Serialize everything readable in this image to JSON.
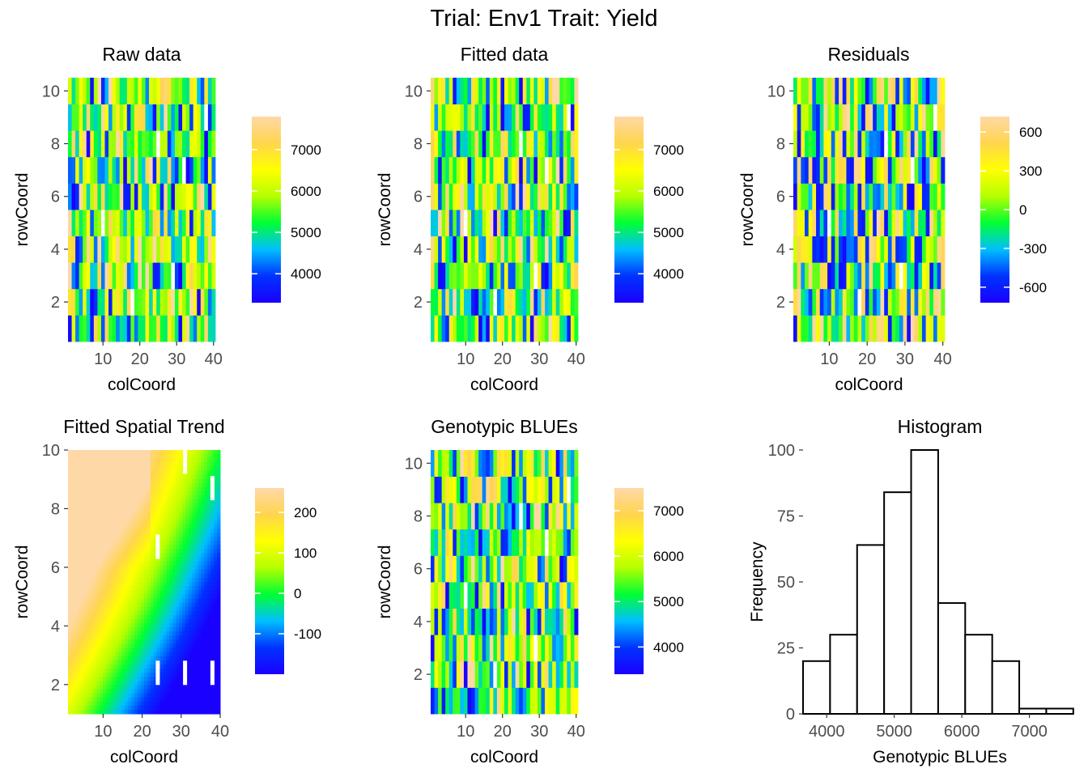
{
  "figure": {
    "title": "Trial: Env1 Trait: Yield"
  },
  "colors": {
    "scale_stops": [
      "#1a00ff",
      "#0033ff",
      "#00bfff",
      "#00ff33",
      "#b5ff00",
      "#ffff00",
      "#ffd54d",
      "#ffd8a8"
    ],
    "missing": "#ffffff",
    "axis_text": "#4d4d4d",
    "histogram_bar": "#ffffff",
    "histogram_edge": "#000000"
  },
  "chart_data": [
    {
      "type": "heatmap",
      "title": "Raw data",
      "xlabel": "colCoord",
      "ylabel": "rowCoord",
      "x_ticks": [
        10,
        20,
        30,
        40
      ],
      "y_ticks": [
        2,
        4,
        6,
        8,
        10
      ],
      "xlim": [
        0.5,
        40.5
      ],
      "ylim": [
        0.5,
        10.5
      ],
      "n_cols": 40,
      "n_rows": 10,
      "value_range": [
        3300,
        7800
      ],
      "legend_ticks": [
        4000,
        5000,
        6000,
        7000
      ],
      "seed": 11,
      "missing_cells": [
        [
          38,
          9
        ],
        [
          29,
          3
        ],
        [
          25,
          8
        ],
        [
          18,
          2
        ],
        [
          32,
          7
        ],
        [
          10,
          5
        ]
      ]
    },
    {
      "type": "heatmap",
      "title": "Fitted data",
      "xlabel": "colCoord",
      "ylabel": "rowCoord",
      "x_ticks": [
        10,
        20,
        30,
        40
      ],
      "y_ticks": [
        2,
        4,
        6,
        8,
        10
      ],
      "xlim": [
        0.5,
        40.5
      ],
      "ylim": [
        0.5,
        10.5
      ],
      "n_cols": 40,
      "n_rows": 10,
      "value_range": [
        3300,
        7800
      ],
      "legend_ticks": [
        4000,
        5000,
        6000,
        7000
      ],
      "seed": 23,
      "missing_cells": [
        [
          38,
          9
        ],
        [
          29,
          3
        ],
        [
          25,
          8
        ],
        [
          18,
          2
        ],
        [
          32,
          7
        ],
        [
          10,
          5
        ]
      ]
    },
    {
      "type": "heatmap",
      "title": "Residuals",
      "xlabel": "colCoord",
      "ylabel": "rowCoord",
      "x_ticks": [
        10,
        20,
        30,
        40
      ],
      "y_ticks": [
        2,
        4,
        6,
        8,
        10
      ],
      "xlim": [
        0.5,
        40.5
      ],
      "ylim": [
        0.5,
        10.5
      ],
      "n_cols": 40,
      "n_rows": 10,
      "value_range": [
        -720,
        720
      ],
      "legend_ticks": [
        -600,
        -300,
        0,
        300,
        600
      ],
      "seed": 37,
      "missing_cells": [
        [
          38,
          9
        ],
        [
          29,
          3
        ],
        [
          25,
          8
        ],
        [
          18,
          2
        ],
        [
          32,
          7
        ],
        [
          10,
          5
        ]
      ]
    },
    {
      "type": "heatmap",
      "title": "Fitted Spatial Trend",
      "xlabel": "colCoord",
      "ylabel": "rowCoord",
      "x_ticks": [
        10,
        20,
        30,
        40
      ],
      "y_ticks": [
        2,
        4,
        6,
        8,
        10
      ],
      "xlim": [
        1,
        40
      ],
      "ylim": [
        1,
        10
      ],
      "value_range": [
        -200,
        260
      ],
      "legend_ticks": [
        -100,
        0,
        100,
        200
      ],
      "missing_cells": [
        [
          31,
          9.6
        ],
        [
          38,
          8.7
        ],
        [
          24,
          6.7
        ],
        [
          24,
          2.4
        ],
        [
          31,
          2.4
        ],
        [
          38,
          2.4
        ]
      ]
    },
    {
      "type": "heatmap",
      "title": "Genotypic BLUEs",
      "xlabel": "colCoord",
      "ylabel": "rowCoord",
      "x_ticks": [
        10,
        20,
        30,
        40
      ],
      "y_ticks": [
        2,
        4,
        6,
        8,
        10
      ],
      "xlim": [
        0.5,
        40.5
      ],
      "ylim": [
        0.5,
        10.5
      ],
      "n_cols": 40,
      "n_rows": 10,
      "value_range": [
        3400,
        7500
      ],
      "legend_ticks": [
        4000,
        5000,
        6000,
        7000
      ],
      "seed": 53,
      "missing_cells": [
        [
          38,
          9
        ],
        [
          29,
          3
        ],
        [
          25,
          8
        ],
        [
          18,
          2
        ],
        [
          32,
          7
        ],
        [
          10,
          5
        ]
      ]
    },
    {
      "type": "bar",
      "title": "Histogram",
      "xlabel": "Genotypic BLUEs",
      "ylabel": "Frequency",
      "bin_edges": [
        3650,
        4050,
        4450,
        4850,
        5250,
        5650,
        6050,
        6450,
        6850,
        7250,
        7650
      ],
      "counts": [
        20,
        30,
        64,
        84,
        100,
        42,
        30,
        20,
        2,
        2
      ],
      "x_ticks": [
        4000,
        5000,
        6000,
        7000
      ],
      "y_ticks": [
        0,
        25,
        50,
        75,
        100
      ],
      "xlim": [
        3650,
        7700
      ],
      "ylim": [
        0,
        100
      ]
    }
  ]
}
